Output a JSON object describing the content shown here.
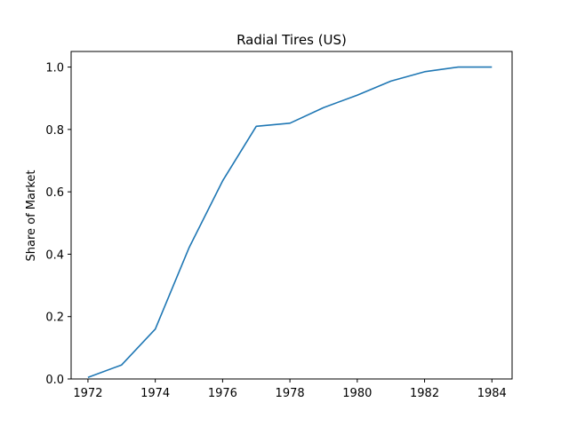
{
  "chart_data": {
    "type": "line",
    "title": "Radial Tires (US)",
    "xlabel": "",
    "ylabel": "Share of Market",
    "xlim": [
      1971.5,
      1984.6
    ],
    "ylim": [
      0.0,
      1.05
    ],
    "grid": false,
    "x_ticks": [
      "1972",
      "1974",
      "1976",
      "1978",
      "1980",
      "1982",
      "1984"
    ],
    "y_ticks": [
      "0.0",
      "0.2",
      "0.4",
      "0.6",
      "0.8",
      "1.0"
    ],
    "series": [
      {
        "color": "#1f77b4",
        "x": [
          1972,
          1973,
          1974,
          1975,
          1976,
          1977,
          1978,
          1979,
          1980,
          1981,
          1982,
          1983,
          1984
        ],
        "y": [
          0.005,
          0.045,
          0.16,
          0.42,
          0.635,
          0.81,
          0.82,
          0.87,
          0.91,
          0.955,
          0.985,
          1.0,
          1.0
        ]
      }
    ]
  }
}
